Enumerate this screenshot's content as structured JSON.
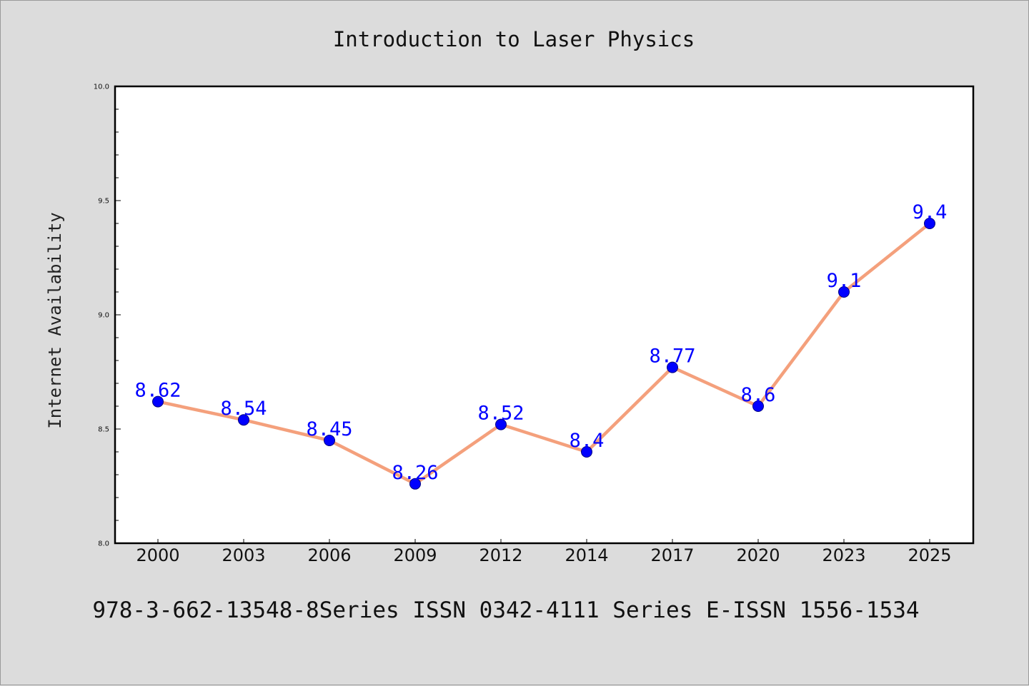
{
  "chart_data": {
    "type": "line",
    "title": "Introduction to Laser Physics",
    "xlabel": "",
    "ylabel": "Internet Availability",
    "categories": [
      "2000",
      "2003",
      "2006",
      "2009",
      "2012",
      "2014",
      "2017",
      "2020",
      "2023",
      "2025"
    ],
    "series": [
      {
        "values": [
          8.62,
          8.54,
          8.45,
          8.26,
          8.52,
          8.4,
          8.77,
          8.6,
          9.1,
          9.4
        ]
      }
    ],
    "data_labels": [
      "8.62",
      "8.54",
      "8.45",
      "8.26",
      "8.52",
      "8.4",
      "8.77",
      "8.6",
      "9.1",
      "9.4"
    ],
    "ylim": [
      8.0,
      10.0
    ],
    "yticks": [
      "8.0",
      "8.5",
      "9.0",
      "9.5",
      "10.0"
    ],
    "ytick_values": [
      8.0,
      8.5,
      9.0,
      9.5,
      10.0
    ],
    "minor_tick_step": 0.1,
    "grid": false,
    "legend": "none",
    "colors": {
      "line": "#f4a07c",
      "marker_fill": "#0000ff",
      "marker_edge": "#000080",
      "data_label": "#0000ff",
      "background": "#dcdcdc",
      "plot_background": "#ffffff"
    },
    "footer": "978-3-662-13548-8Series ISSN 0342-4111 Series E-ISSN 1556-1534"
  }
}
